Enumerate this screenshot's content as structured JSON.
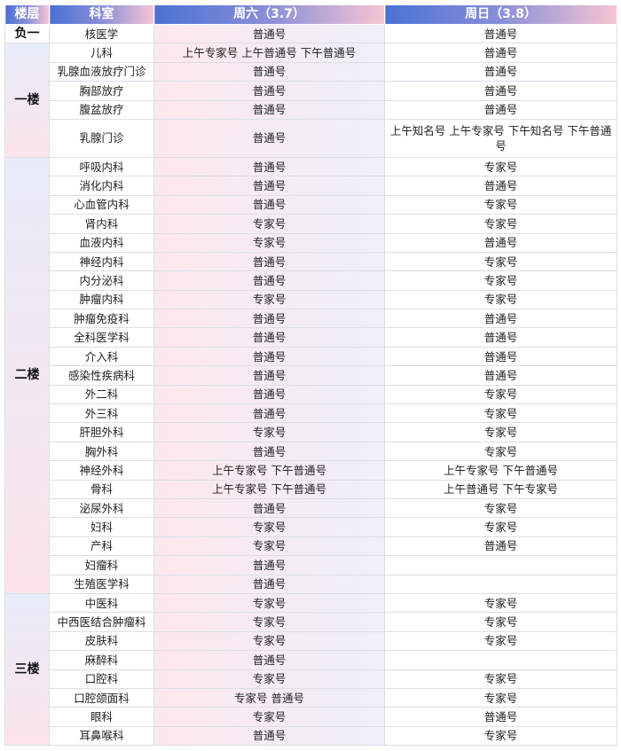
{
  "header": {
    "floor": "楼层",
    "dept": "科室",
    "sat": "周六（3.7）",
    "sun": "周日（3.8）"
  },
  "colors": {
    "header_start": "#4a72d4",
    "header_end": "#f6c6d2",
    "floor_top": "#e8ecfa",
    "floor_bottom": "#fce4ea"
  },
  "floors": [
    {
      "name": "负一",
      "rows": [
        {
          "dept": "核医学",
          "sat": "普通号",
          "sun": "普通号"
        }
      ]
    },
    {
      "name": "一楼",
      "rows": [
        {
          "dept": "儿科",
          "sat": "上午专家号 上午普通号 下午普通号",
          "sun": "普通号"
        },
        {
          "dept": "乳腺血液放疗门诊",
          "sat": "普通号",
          "sun": "普通号"
        },
        {
          "dept": "胸部放疗",
          "sat": "普通号",
          "sun": "普通号"
        },
        {
          "dept": "腹盆放疗",
          "sat": "普通号",
          "sun": "普通号"
        },
        {
          "dept": "乳腺门诊",
          "sat": "普通号",
          "sun": "上午知名号 上午专家号  下午知名号 下午普通号"
        }
      ]
    },
    {
      "name": "二楼",
      "rows": [
        {
          "dept": "呼吸内科",
          "sat": "普通号",
          "sun": "专家号"
        },
        {
          "dept": "消化内科",
          "sat": "普通号",
          "sun": "普通号"
        },
        {
          "dept": "心血管内科",
          "sat": "普通号",
          "sun": "专家号"
        },
        {
          "dept": "肾内科",
          "sat": "专家号",
          "sun": "专家号"
        },
        {
          "dept": "血液内科",
          "sat": "专家号",
          "sun": "普通号"
        },
        {
          "dept": "神经内科",
          "sat": "普通号",
          "sun": "专家号"
        },
        {
          "dept": "内分泌科",
          "sat": "普通号",
          "sun": "专家号"
        },
        {
          "dept": "肿瘤内科",
          "sat": "专家号",
          "sun": "专家号"
        },
        {
          "dept": "肿瘤免疫科",
          "sat": "普通号",
          "sun": "普通号"
        },
        {
          "dept": "全科医学科",
          "sat": "普通号",
          "sun": "普通号"
        },
        {
          "dept": "介入科",
          "sat": "普通号",
          "sun": "普通号"
        },
        {
          "dept": "感染性疾病科",
          "sat": "普通号",
          "sun": "普通号"
        },
        {
          "dept": "外二科",
          "sat": "普通号",
          "sun": "专家号"
        },
        {
          "dept": "外三科",
          "sat": "普通号",
          "sun": "专家号"
        },
        {
          "dept": "肝胆外科",
          "sat": "专家号",
          "sun": "专家号"
        },
        {
          "dept": "胸外科",
          "sat": "普通号",
          "sun": "专家号"
        },
        {
          "dept": "神经外科",
          "sat": "上午专家号 下午普通号",
          "sun": "上午专家号 下午普通号"
        },
        {
          "dept": "骨科",
          "sat": "上午专家号 下午普通号",
          "sun": "上午普通号 下午专家号"
        },
        {
          "dept": "泌尿外科",
          "sat": "普通号",
          "sun": "专家号"
        },
        {
          "dept": "妇科",
          "sat": "专家号",
          "sun": "专家号"
        },
        {
          "dept": "产科",
          "sat": "专家号",
          "sun": "普通号"
        },
        {
          "dept": "妇瘤科",
          "sat": "普通号",
          "sun": ""
        },
        {
          "dept": "生殖医学科",
          "sat": "普通号",
          "sun": ""
        }
      ]
    },
    {
      "name": "三楼",
      "rows": [
        {
          "dept": "中医科",
          "sat": "专家号",
          "sun": "专家号"
        },
        {
          "dept": "中西医结合肿瘤科",
          "sat": "专家号",
          "sun": "专家号"
        },
        {
          "dept": "皮肤科",
          "sat": "专家号",
          "sun": "专家号"
        },
        {
          "dept": "麻醉科",
          "sat": "普通号",
          "sun": ""
        },
        {
          "dept": "口腔科",
          "sat": "专家号",
          "sun": "专家号"
        },
        {
          "dept": "口腔颌面科",
          "sat": "专家号 普通号",
          "sun": "专家号"
        },
        {
          "dept": "眼科",
          "sat": "专家号",
          "sun": "普通号"
        },
        {
          "dept": "耳鼻喉科",
          "sat": "普通号",
          "sun": "专家号"
        }
      ]
    }
  ]
}
